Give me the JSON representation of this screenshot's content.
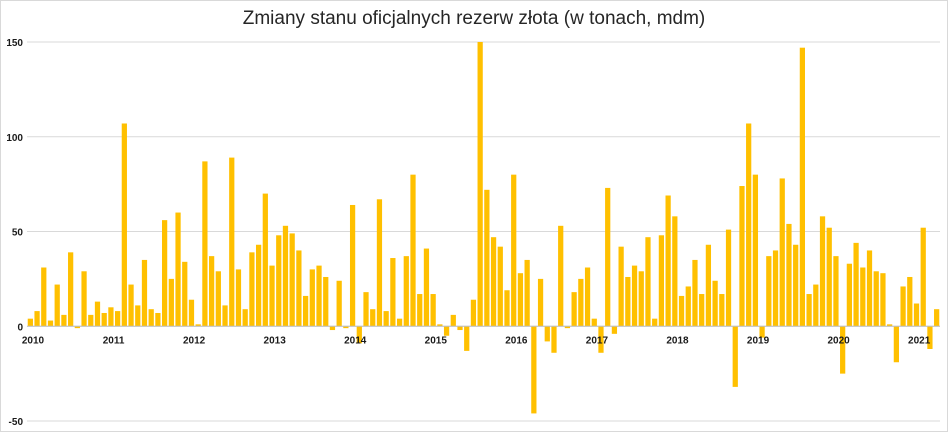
{
  "chart_data": {
    "type": "bar",
    "title": "Zmiany stanu oficjalnych rezerw złota (w tonach, mdm)",
    "xlabel": "",
    "ylabel": "",
    "ylim": [
      -50,
      150
    ],
    "yticks": [
      -50,
      0,
      50,
      100,
      150
    ],
    "grid": true,
    "bar_color": "#FFC000",
    "x_tick_labels": [
      {
        "label": "2010",
        "index": 0
      },
      {
        "label": "2011",
        "index": 12
      },
      {
        "label": "2012",
        "index": 24
      },
      {
        "label": "2013",
        "index": 36
      },
      {
        "label": "2014",
        "index": 48
      },
      {
        "label": "2015",
        "index": 60
      },
      {
        "label": "2016",
        "index": 72
      },
      {
        "label": "2017",
        "index": 84
      },
      {
        "label": "2018",
        "index": 96
      },
      {
        "label": "2019",
        "index": 108
      },
      {
        "label": "2020",
        "index": 120
      },
      {
        "label": "2021",
        "index": 132
      }
    ],
    "series": [
      {
        "start_month": "2010-01",
        "values": [
          4,
          8,
          31,
          3,
          22,
          6,
          39,
          -1,
          29,
          6,
          13,
          7,
          10,
          8,
          107,
          22,
          11,
          35,
          9,
          7,
          56,
          25,
          60,
          34,
          14,
          1,
          87,
          37,
          29,
          11,
          89,
          30,
          9,
          39,
          43,
          70,
          32,
          48,
          53,
          49,
          40,
          16,
          30,
          32,
          26,
          -2,
          24,
          -1,
          64,
          -9,
          18,
          9,
          67,
          8,
          36,
          4,
          37,
          80,
          17,
          41,
          17,
          1,
          -5,
          6,
          -2,
          -13,
          14,
          150,
          72,
          47,
          42,
          19,
          80,
          28,
          35,
          -46,
          25,
          -8,
          -14,
          53,
          -1,
          18,
          25,
          31,
          4,
          -14,
          73,
          -4,
          42,
          26,
          32,
          29,
          47,
          4,
          48,
          69,
          58,
          16,
          21,
          35,
          17,
          43,
          24,
          17,
          51,
          -32,
          74,
          107,
          80,
          -6,
          37,
          40,
          78,
          54,
          43,
          147,
          17,
          22,
          58,
          52,
          37,
          -25,
          33,
          44,
          31,
          40,
          29,
          28,
          1,
          -19,
          21,
          26,
          12,
          52,
          -12,
          9
        ]
      }
    ]
  }
}
